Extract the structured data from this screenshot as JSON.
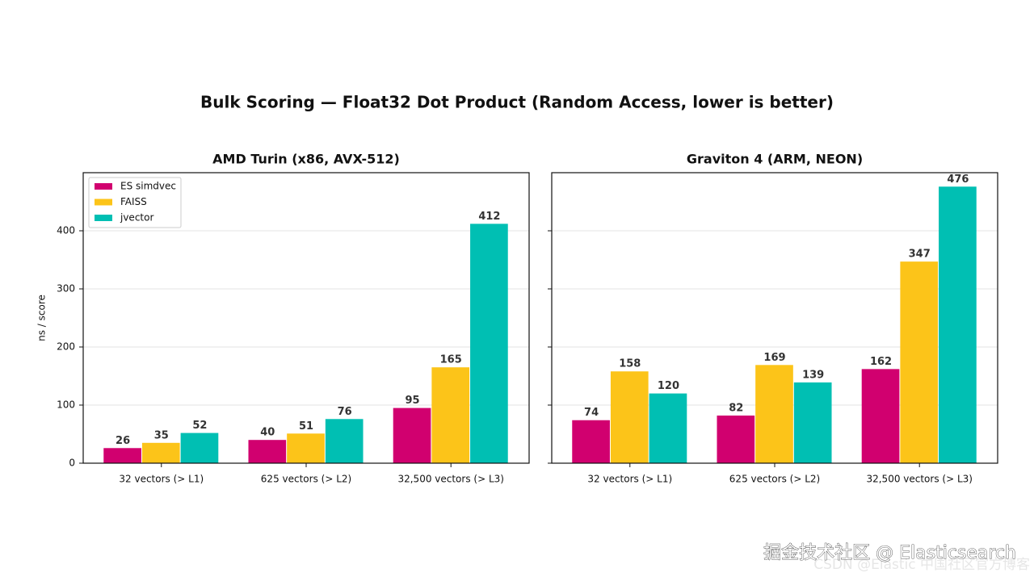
{
  "title": "Bulk Scoring — Float32 Dot Product (Random Access, lower is better)",
  "watermarks": [
    "掘金技术社区 @ Elasticsearch",
    "CSDN @Elastic 中国社区官方博客"
  ],
  "chart_data": [
    {
      "type": "bar",
      "title": "AMD Turin (x86, AVX-512)",
      "ylabel": "ns / score",
      "categories": [
        "32 vectors  (> L1)",
        "625 vectors  (> L2)",
        "32,500 vectors  (> L3)"
      ],
      "series": [
        {
          "name": "ES simdvec",
          "color": "#d1006f",
          "values": [
            26,
            40,
            95
          ]
        },
        {
          "name": "FAISS",
          "color": "#fcc419",
          "values": [
            35,
            51,
            165
          ]
        },
        {
          "name": "jvector",
          "color": "#00bfb3",
          "values": [
            52,
            76,
            412
          ]
        }
      ],
      "ylim": [
        0,
        500
      ],
      "yticks": [
        0,
        100,
        200,
        300,
        400
      ],
      "ytick_labels": true,
      "grid": true,
      "legend": "upper left"
    },
    {
      "type": "bar",
      "title": "Graviton 4 (ARM, NEON)",
      "categories": [
        "32 vectors  (> L1)",
        "625 vectors  (> L2)",
        "32,500 vectors  (> L3)"
      ],
      "series": [
        {
          "color": "#d1006f",
          "values": [
            74,
            82,
            162
          ]
        },
        {
          "color": "#fcc419",
          "values": [
            158,
            169,
            347
          ]
        },
        {
          "color": "#00bfb3",
          "values": [
            120,
            139,
            476
          ]
        }
      ],
      "ylim": [
        0,
        500
      ],
      "yticks": [
        0,
        100,
        200,
        300,
        400
      ],
      "ytick_labels": false,
      "grid": true
    }
  ]
}
